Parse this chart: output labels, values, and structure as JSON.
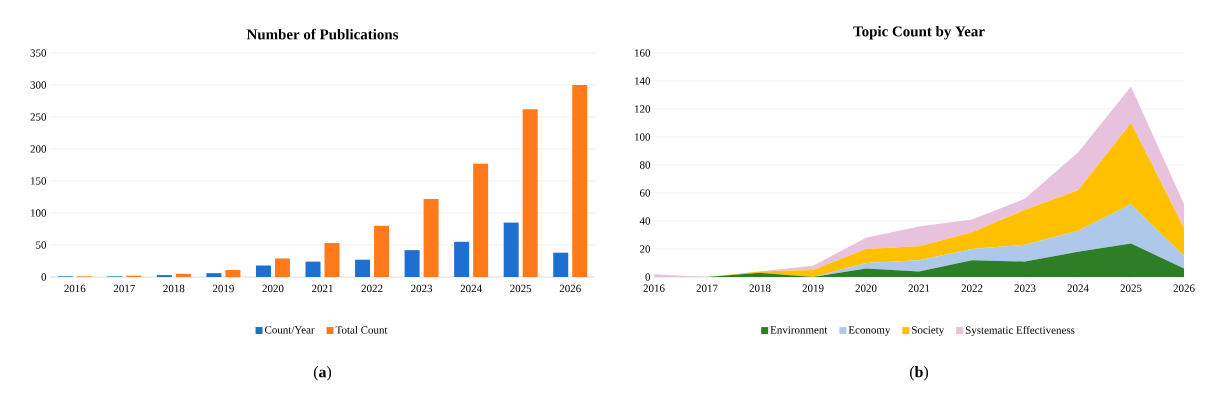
{
  "chart_data": [
    {
      "type": "bar",
      "title": "Number of Publications",
      "categories": [
        "2016",
        "2017",
        "2018",
        "2019",
        "2020",
        "2021",
        "2022",
        "2023",
        "2024",
        "2025",
        "2026"
      ],
      "series": [
        {
          "name": "Count/Year",
          "color": "#1f6fd0",
          "values": [
            1,
            1,
            3,
            6,
            18,
            24,
            27,
            42,
            55,
            85,
            38
          ]
        },
        {
          "name": "Total Count",
          "color": "#ff7a1a",
          "values": [
            1,
            2,
            5,
            11,
            29,
            53,
            80,
            122,
            177,
            262,
            300
          ]
        }
      ],
      "ylim": [
        0,
        350
      ],
      "yticks": [
        0,
        50,
        100,
        150,
        200,
        250,
        300,
        350
      ],
      "grid": "y",
      "legend": "bottom",
      "annotations": [
        "(**a**)"
      ]
    },
    {
      "type": "area",
      "stacked": true,
      "title": "Topic Count by Year",
      "categories": [
        "2016",
        "2017",
        "2018",
        "2019",
        "2020",
        "2021",
        "2022",
        "2023",
        "2024",
        "2025",
        "2026"
      ],
      "series": [
        {
          "name": "Environment",
          "color": "#2e7d27",
          "values": [
            0,
            0,
            3,
            0,
            6,
            4,
            12,
            11,
            18,
            24,
            6
          ]
        },
        {
          "name": "Economy",
          "color": "#adc8e8",
          "values": [
            0,
            0,
            0,
            0,
            4,
            8,
            8,
            12,
            15,
            28,
            9
          ]
        },
        {
          "name": "Society",
          "color": "#ffc000",
          "values": [
            0,
            0,
            1,
            5,
            10,
            10,
            12,
            25,
            29,
            58,
            20
          ]
        },
        {
          "name": "Systematic Effectiveness",
          "color": "#e8c1dc",
          "values": [
            2,
            0,
            0,
            3,
            8,
            14,
            9,
            8,
            27,
            26,
            17
          ]
        }
      ],
      "ylim": [
        0,
        160
      ],
      "yticks": [
        0,
        20,
        40,
        60,
        80,
        100,
        120,
        140,
        160
      ],
      "grid": "y",
      "legend": "bottom",
      "annotations": [
        "(**b**)"
      ]
    }
  ]
}
